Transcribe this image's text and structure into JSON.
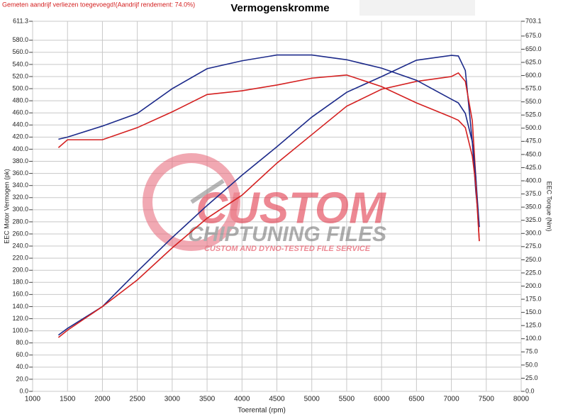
{
  "chart_data": {
    "type": "line",
    "note": "Gemeten aandrijf verliezen toegevoegd!(Aandrijf rendement: 74.0%)",
    "title": "Vermogenskromme",
    "watermark": [
      "CUSTOM",
      "CHIPTUNING FILES",
      "CUSTOM AND DYNO-TESTED FILE SERVICE"
    ],
    "xlabel": "Toerental (rpm)",
    "ylabel": "EEC Motor Vermogen (pk)",
    "y2label": "EEC Torque (Nm)",
    "grid": true,
    "x": [
      1370,
      1500,
      2000,
      2500,
      3000,
      3500,
      4000,
      4500,
      5000,
      5500,
      6000,
      6500,
      7000,
      7100,
      7200,
      7300,
      7350,
      7400
    ],
    "series": [
      {
        "color": "#1c2a8a",
        "axis": "y",
        "values": [
          93,
          104,
          140,
          198,
          254,
          307,
          357,
          404,
          453,
          494,
          520,
          547,
          555,
          554,
          530,
          412,
          330,
          272
        ]
      },
      {
        "color": "#d42020",
        "axis": "y",
        "values": [
          89,
          101,
          140,
          184,
          237,
          286,
          324,
          377,
          424,
          471,
          499,
          512,
          520,
          526,
          512,
          447,
          354,
          248
        ]
      },
      {
        "color": "#1c2a8a",
        "axis": "y2",
        "values": [
          479,
          483,
          504,
          528,
          575,
          613,
          628,
          639,
          639,
          630,
          614,
          591,
          555,
          548,
          528,
          474,
          407,
          312
        ]
      },
      {
        "color": "#d42020",
        "axis": "y2",
        "values": [
          463,
          478,
          478,
          501,
          531,
          564,
          571,
          582,
          595,
          601,
          579,
          548,
          521,
          515,
          501,
          447,
          393,
          286
        ]
      }
    ],
    "xlim": [
      1000,
      8000
    ],
    "xticks": [
      1000,
      1500,
      2000,
      2500,
      3000,
      3500,
      4000,
      4500,
      5000,
      5500,
      6000,
      6500,
      7000,
      7500,
      8000
    ],
    "ylim": [
      0,
      611.3
    ],
    "yticks": [
      {
        "value": 0,
        "label": "0.0"
      },
      {
        "value": 20,
        "label": "20.0"
      },
      {
        "value": 40,
        "label": "40.0"
      },
      {
        "value": 60,
        "label": "60.0"
      },
      {
        "value": 80,
        "label": "80.0"
      },
      {
        "value": 100,
        "label": "100.0"
      },
      {
        "value": 120,
        "label": "120.0"
      },
      {
        "value": 140,
        "label": "140.0"
      },
      {
        "value": 160,
        "label": "160.0"
      },
      {
        "value": 180,
        "label": "180.0"
      },
      {
        "value": 200,
        "label": "200.0"
      },
      {
        "value": 220,
        "label": "220.0"
      },
      {
        "value": 240,
        "label": "240.0"
      },
      {
        "value": 260,
        "label": "260.0"
      },
      {
        "value": 280,
        "label": "280.0"
      },
      {
        "value": 300,
        "label": "300.0"
      },
      {
        "value": 320,
        "label": "320.0"
      },
      {
        "value": 340,
        "label": "340.0"
      },
      {
        "value": 360,
        "label": "360.0"
      },
      {
        "value": 380,
        "label": "380.0"
      },
      {
        "value": 400,
        "label": "400.0"
      },
      {
        "value": 420,
        "label": "420.0"
      },
      {
        "value": 440,
        "label": "440.0"
      },
      {
        "value": 460,
        "label": "460.0"
      },
      {
        "value": 480,
        "label": "480.0"
      },
      {
        "value": 500,
        "label": "500.0"
      },
      {
        "value": 520,
        "label": "520.0"
      },
      {
        "value": 540,
        "label": "540.0"
      },
      {
        "value": 560,
        "label": "560.0"
      },
      {
        "value": 580,
        "label": "580.0"
      },
      {
        "value": 611.3,
        "label": "611.3"
      }
    ],
    "y2lim": [
      0,
      703.1
    ],
    "y2ticks": [
      {
        "value": 0,
        "label": "0.0"
      },
      {
        "value": 25,
        "label": "25.0"
      },
      {
        "value": 50,
        "label": "50.0"
      },
      {
        "value": 75,
        "label": "75.0"
      },
      {
        "value": 100,
        "label": "100.0"
      },
      {
        "value": 125,
        "label": "125.0"
      },
      {
        "value": 150,
        "label": "150.0"
      },
      {
        "value": 175,
        "label": "175.0"
      },
      {
        "value": 200,
        "label": "200.0"
      },
      {
        "value": 225,
        "label": "225.0"
      },
      {
        "value": 250,
        "label": "250.0"
      },
      {
        "value": 275,
        "label": "275.0"
      },
      {
        "value": 300,
        "label": "300.0"
      },
      {
        "value": 325,
        "label": "325.0"
      },
      {
        "value": 350,
        "label": "350.0"
      },
      {
        "value": 375,
        "label": "375.0"
      },
      {
        "value": 400,
        "label": "400.0"
      },
      {
        "value": 425,
        "label": "425.0"
      },
      {
        "value": 450,
        "label": "450.0"
      },
      {
        "value": 475,
        "label": "475.0"
      },
      {
        "value": 500,
        "label": "500.0"
      },
      {
        "value": 525,
        "label": "525.0"
      },
      {
        "value": 550,
        "label": "550.0"
      },
      {
        "value": 575,
        "label": "575.0"
      },
      {
        "value": 600,
        "label": "600.0"
      },
      {
        "value": 625,
        "label": "625.0"
      },
      {
        "value": 650,
        "label": "650.0"
      },
      {
        "value": 675,
        "label": "675.0"
      },
      {
        "value": 703.1,
        "label": "703.1"
      }
    ]
  }
}
